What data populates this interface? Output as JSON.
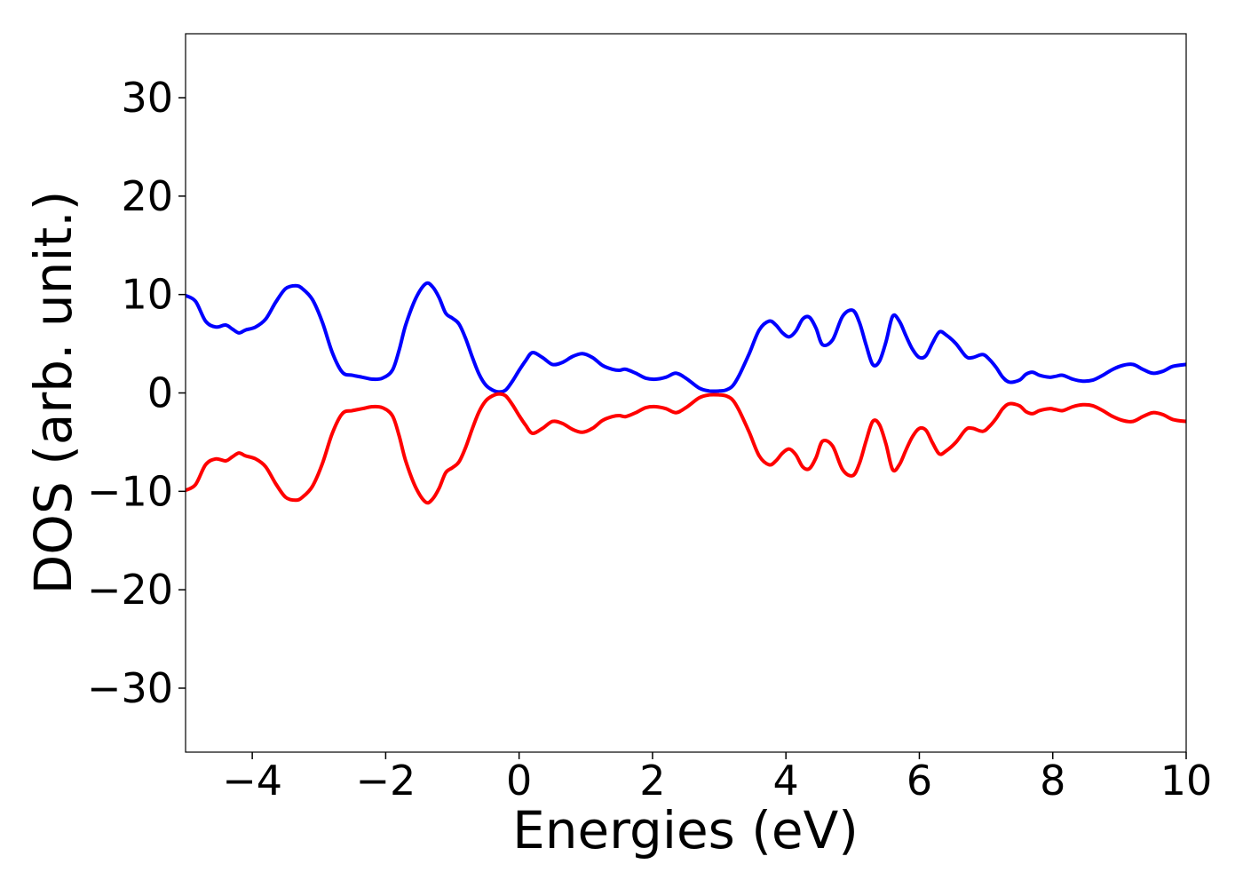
{
  "chart_data": {
    "type": "line",
    "title": "",
    "xlabel": "Energies (eV)",
    "ylabel": "DOS (arb. unit.)",
    "xlim": [
      -5,
      10
    ],
    "ylim": [
      -36.5,
      36.5
    ],
    "x_ticks": [
      -4,
      -2,
      0,
      2,
      4,
      6,
      8,
      10
    ],
    "x_tick_labels": [
      "−4",
      "−2",
      "0",
      "2",
      "4",
      "6",
      "8",
      "10"
    ],
    "y_ticks": [
      -30,
      -20,
      -10,
      0,
      10,
      20,
      30
    ],
    "y_tick_labels": [
      "−30",
      "−20",
      "−10",
      "0",
      "10",
      "20",
      "30"
    ],
    "grid": false,
    "legend": "none",
    "series": [
      {
        "color": "#0000ff",
        "x": [
          -5.0,
          -4.85,
          -4.7,
          -4.55,
          -4.4,
          -4.3,
          -4.2,
          -4.1,
          -3.95,
          -3.8,
          -3.65,
          -3.5,
          -3.35,
          -3.25,
          -3.1,
          -2.95,
          -2.8,
          -2.65,
          -2.5,
          -2.35,
          -2.2,
          -2.05,
          -1.9,
          -1.8,
          -1.7,
          -1.55,
          -1.4,
          -1.3,
          -1.2,
          -1.1,
          -1.0,
          -0.9,
          -0.8,
          -0.7,
          -0.6,
          -0.5,
          -0.4,
          -0.3,
          -0.2,
          -0.1,
          0.0,
          0.1,
          0.2,
          0.35,
          0.5,
          0.65,
          0.8,
          0.95,
          1.1,
          1.25,
          1.4,
          1.5,
          1.6,
          1.75,
          1.9,
          2.05,
          2.2,
          2.35,
          2.5,
          2.7,
          2.85,
          3.0,
          3.1,
          3.2,
          3.3,
          3.45,
          3.6,
          3.75,
          3.85,
          3.95,
          4.05,
          4.15,
          4.25,
          4.35,
          4.45,
          4.55,
          4.7,
          4.85,
          5.0,
          5.1,
          5.2,
          5.3,
          5.4,
          5.5,
          5.6,
          5.7,
          5.8,
          5.9,
          6.0,
          6.1,
          6.2,
          6.3,
          6.4,
          6.55,
          6.7,
          6.8,
          6.95,
          7.05,
          7.15,
          7.25,
          7.35,
          7.5,
          7.6,
          7.7,
          7.8,
          7.95,
          8.05,
          8.15,
          8.3,
          8.45,
          8.6,
          8.75,
          8.9,
          9.05,
          9.2,
          9.35,
          9.5,
          9.65,
          9.8,
          10.0
        ],
        "y": [
          9.9,
          9.3,
          7.3,
          6.7,
          6.9,
          6.5,
          6.1,
          6.4,
          6.7,
          7.5,
          9.2,
          10.6,
          10.9,
          10.6,
          9.5,
          7.2,
          4.1,
          2.1,
          1.8,
          1.6,
          1.4,
          1.5,
          2.3,
          4.3,
          6.9,
          9.6,
          11.1,
          10.8,
          9.7,
          8.1,
          7.6,
          7.0,
          5.5,
          3.6,
          1.9,
          0.8,
          0.3,
          0.1,
          0.3,
          1.2,
          2.3,
          3.3,
          4.1,
          3.6,
          2.9,
          3.1,
          3.7,
          4.0,
          3.6,
          2.8,
          2.4,
          2.3,
          2.4,
          2.0,
          1.5,
          1.4,
          1.6,
          2.0,
          1.5,
          0.5,
          0.2,
          0.2,
          0.3,
          0.7,
          1.8,
          4.0,
          6.4,
          7.3,
          6.9,
          6.1,
          5.7,
          6.3,
          7.5,
          7.7,
          6.6,
          4.9,
          5.4,
          7.8,
          8.4,
          7.2,
          4.9,
          2.9,
          3.2,
          5.2,
          7.8,
          7.3,
          5.8,
          4.4,
          3.6,
          3.8,
          5.1,
          6.2,
          5.9,
          5.0,
          3.7,
          3.6,
          3.9,
          3.4,
          2.6,
          1.6,
          1.1,
          1.3,
          1.9,
          2.1,
          1.8,
          1.6,
          1.7,
          1.8,
          1.4,
          1.2,
          1.3,
          1.8,
          2.4,
          2.8,
          2.9,
          2.4,
          2.0,
          2.2,
          2.7,
          2.9
        ]
      },
      {
        "color": "#ff0000",
        "x": [
          -5.0,
          -4.85,
          -4.7,
          -4.55,
          -4.4,
          -4.3,
          -4.2,
          -4.1,
          -3.95,
          -3.8,
          -3.65,
          -3.5,
          -3.35,
          -3.25,
          -3.1,
          -2.95,
          -2.8,
          -2.65,
          -2.5,
          -2.35,
          -2.2,
          -2.05,
          -1.9,
          -1.8,
          -1.7,
          -1.55,
          -1.4,
          -1.3,
          -1.2,
          -1.1,
          -1.0,
          -0.9,
          -0.8,
          -0.7,
          -0.6,
          -0.5,
          -0.4,
          -0.3,
          -0.2,
          -0.1,
          0.0,
          0.1,
          0.2,
          0.35,
          0.5,
          0.65,
          0.8,
          0.95,
          1.1,
          1.25,
          1.4,
          1.5,
          1.6,
          1.75,
          1.9,
          2.05,
          2.2,
          2.35,
          2.5,
          2.7,
          2.85,
          3.0,
          3.1,
          3.2,
          3.3,
          3.45,
          3.6,
          3.75,
          3.85,
          3.95,
          4.05,
          4.15,
          4.25,
          4.35,
          4.45,
          4.55,
          4.7,
          4.85,
          5.0,
          5.1,
          5.2,
          5.3,
          5.4,
          5.5,
          5.6,
          5.7,
          5.8,
          5.9,
          6.0,
          6.1,
          6.2,
          6.3,
          6.4,
          6.55,
          6.7,
          6.8,
          6.95,
          7.05,
          7.15,
          7.25,
          7.35,
          7.5,
          7.6,
          7.7,
          7.8,
          7.95,
          8.05,
          8.15,
          8.3,
          8.45,
          8.6,
          8.75,
          8.9,
          9.05,
          9.2,
          9.35,
          9.5,
          9.65,
          9.8,
          10.0
        ],
        "y": [
          -9.9,
          -9.3,
          -7.3,
          -6.7,
          -6.9,
          -6.5,
          -6.1,
          -6.4,
          -6.7,
          -7.5,
          -9.2,
          -10.6,
          -10.9,
          -10.6,
          -9.5,
          -7.2,
          -4.1,
          -2.1,
          -1.8,
          -1.6,
          -1.4,
          -1.5,
          -2.3,
          -4.3,
          -6.9,
          -9.6,
          -11.1,
          -10.8,
          -9.7,
          -8.1,
          -7.6,
          -7.0,
          -5.5,
          -3.6,
          -1.9,
          -0.8,
          -0.3,
          -0.1,
          -0.3,
          -1.2,
          -2.3,
          -3.3,
          -4.1,
          -3.6,
          -2.9,
          -3.1,
          -3.7,
          -4.0,
          -3.6,
          -2.8,
          -2.4,
          -2.3,
          -2.4,
          -2.0,
          -1.5,
          -1.4,
          -1.6,
          -2.0,
          -1.5,
          -0.5,
          -0.2,
          -0.2,
          -0.3,
          -0.7,
          -1.8,
          -4.0,
          -6.4,
          -7.3,
          -6.9,
          -6.1,
          -5.7,
          -6.3,
          -7.5,
          -7.7,
          -6.6,
          -4.9,
          -5.4,
          -7.8,
          -8.4,
          -7.2,
          -4.9,
          -2.9,
          -3.2,
          -5.2,
          -7.8,
          -7.3,
          -5.8,
          -4.4,
          -3.6,
          -3.8,
          -5.1,
          -6.2,
          -5.9,
          -5.0,
          -3.7,
          -3.6,
          -3.9,
          -3.4,
          -2.6,
          -1.6,
          -1.1,
          -1.3,
          -1.9,
          -2.1,
          -1.8,
          -1.6,
          -1.7,
          -1.8,
          -1.4,
          -1.2,
          -1.3,
          -1.8,
          -2.4,
          -2.8,
          -2.9,
          -2.4,
          -2.0,
          -2.2,
          -2.7,
          -2.9
        ]
      }
    ]
  }
}
